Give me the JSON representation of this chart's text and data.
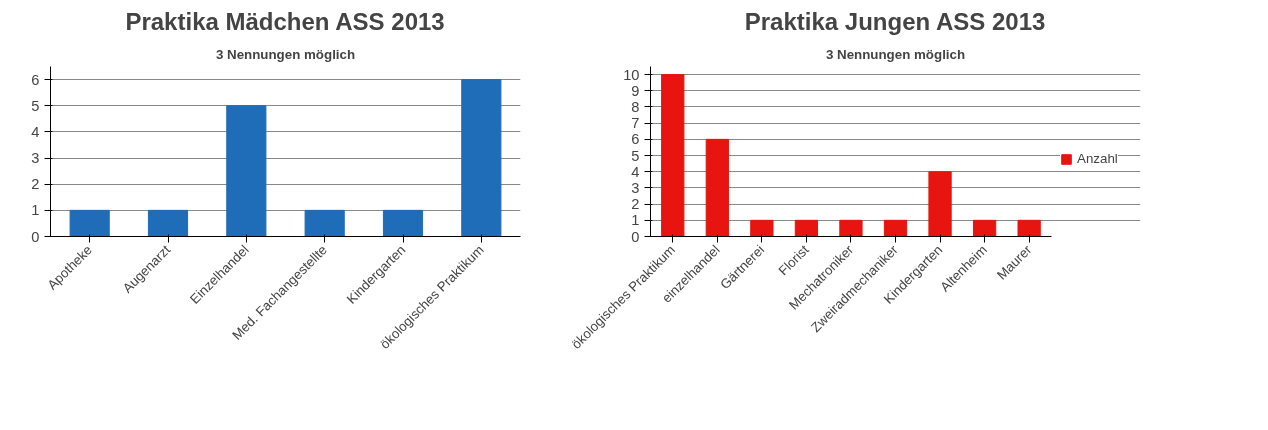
{
  "chart_data": [
    {
      "type": "bar",
      "title": "Praktika Mädchen ASS 2013",
      "subtitle": "3 Nennungen möglich",
      "categories": [
        "Apotheke",
        "Augenarzt",
        "Einzelhandel",
        "Med. Fachangestellte",
        "Kindergarten",
        "ökologisches Praktikum"
      ],
      "values": [
        1,
        1,
        5,
        1,
        1,
        6
      ],
      "color": "#1f6db8",
      "ylim": [
        0,
        6.5
      ],
      "yticks": [
        0,
        1,
        2,
        3,
        4,
        5,
        6
      ],
      "grid": "y"
    },
    {
      "type": "bar",
      "title": "Praktika Jungen ASS 2013",
      "subtitle": "3 Nennungen möglich",
      "categories": [
        "ökologisches Praktikum",
        "einzelhandel",
        "Gärtnerei",
        "Florist",
        "Mechatroniker",
        "Zweiradmechaniker",
        "Kindergarten",
        "Altenheim",
        "Maurer"
      ],
      "series": [
        {
          "name": "Anzahl",
          "color": "#e8140f",
          "values": [
            10,
            6,
            1,
            1,
            1,
            1,
            4,
            1,
            1
          ]
        }
      ],
      "ylim": [
        0,
        10.5
      ],
      "yticks": [
        0,
        1,
        2,
        3,
        4,
        5,
        6,
        7,
        8,
        9,
        10
      ],
      "grid": "y",
      "legend": "right"
    }
  ]
}
